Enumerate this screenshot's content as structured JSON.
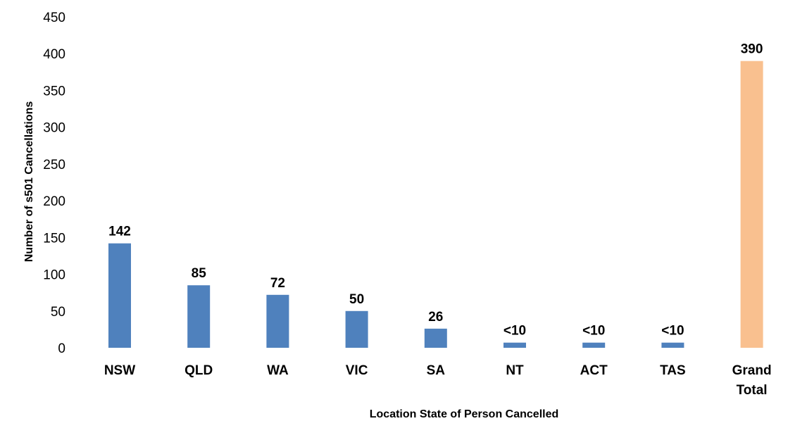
{
  "chart_data": {
    "type": "bar",
    "title": "",
    "xlabel": "Location State of Person Cancelled",
    "ylabel": "Number of s501 Cancellations",
    "ylim": [
      0,
      450
    ],
    "yticks": [
      0,
      50,
      100,
      150,
      200,
      250,
      300,
      350,
      400,
      450
    ],
    "grid": false,
    "legend": "none",
    "categories": [
      "NSW",
      "QLD",
      "WA",
      "VIC",
      "SA",
      "NT",
      "ACT",
      "TAS",
      "Grand Total"
    ],
    "values": [
      142,
      85,
      72,
      50,
      26,
      7,
      7,
      7,
      390
    ],
    "data_labels": [
      "142",
      "85",
      "72",
      "50",
      "26",
      "<10",
      "<10",
      "<10",
      "390"
    ],
    "colors": {
      "bar": "#4f81bd",
      "total_bar": "#f9c08f"
    }
  }
}
